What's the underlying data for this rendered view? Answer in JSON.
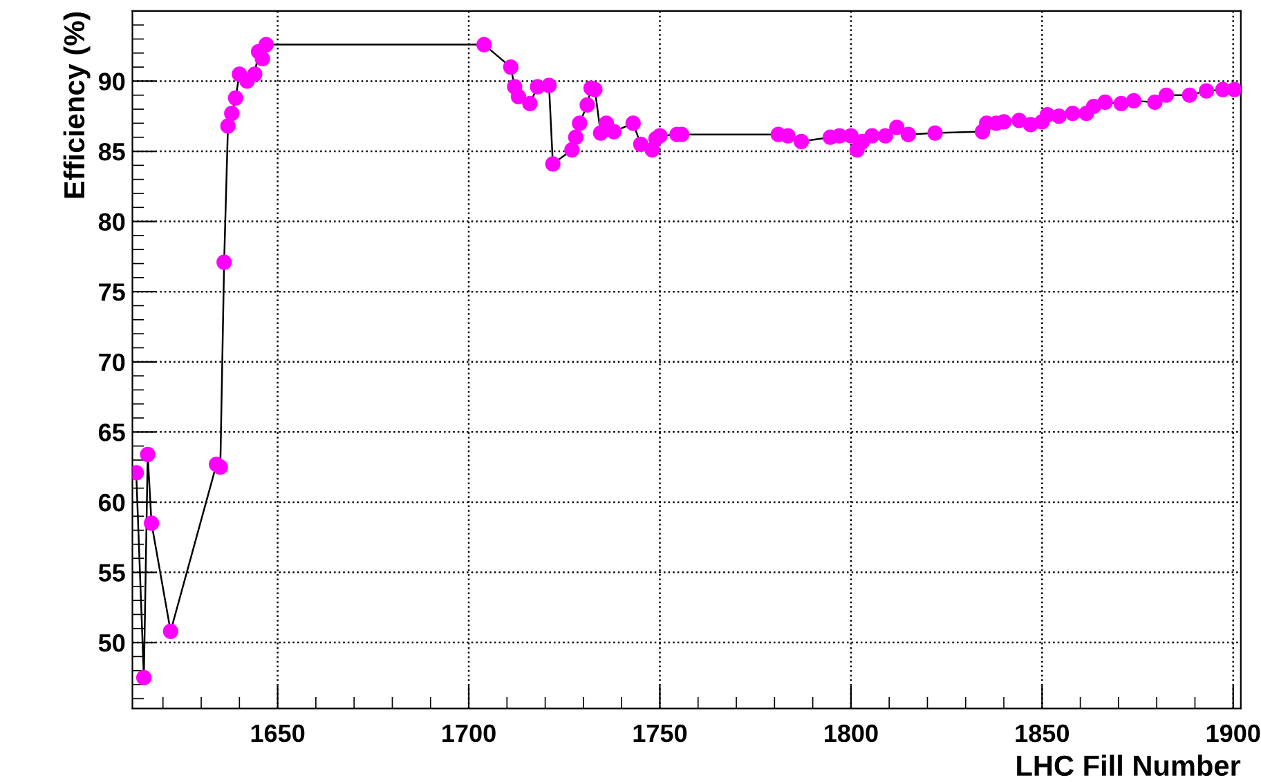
{
  "chart_data": {
    "type": "line",
    "xlabel": "LHC Fill Number",
    "ylabel": "Efficiency (%)",
    "xlim": [
      1612,
      1902
    ],
    "xticks": [
      1650,
      1700,
      1750,
      1800,
      1850,
      1900
    ],
    "ylim": [
      45.3,
      95.0
    ],
    "yticks": [
      50,
      55,
      60,
      65,
      70,
      75,
      80,
      85,
      90
    ],
    "grid": true,
    "marker": "circle",
    "line_style": "solid",
    "series": [
      {
        "color": "#ff00ff",
        "x": [
          1613,
          1615,
          1616,
          1617,
          1622,
          1634,
          1635,
          1636,
          1637,
          1638,
          1639,
          1640,
          1642,
          1644,
          1645,
          1646,
          1647,
          1704,
          1711,
          1712,
          1713,
          1716,
          1718,
          1721,
          1722,
          1727,
          1728,
          1729,
          1731,
          1732,
          1733,
          1734.5,
          1736,
          1738,
          1743,
          1745,
          1748,
          1749,
          1750,
          1754.5,
          1755.7,
          1781,
          1783.5,
          1787,
          1794.6,
          1797,
          1800,
          1801.6,
          1803,
          1805.5,
          1809,
          1812,
          1815,
          1822,
          1834.4,
          1835.5,
          1838,
          1840,
          1844,
          1847,
          1850,
          1851.4,
          1854.4,
          1858,
          1861.6,
          1863.5,
          1866.5,
          1870.7,
          1874,
          1879.5,
          1882.5,
          1888.6,
          1893,
          1897.3,
          1900.3
        ],
        "values": [
          62.1,
          47.5,
          63.4,
          58.5,
          50.8,
          62.7,
          62.5,
          77.1,
          86.8,
          87.7,
          88.8,
          90.5,
          90.0,
          90.5,
          92.1,
          91.6,
          92.6,
          92.6,
          91.0,
          89.6,
          88.9,
          88.4,
          89.6,
          89.7,
          84.1,
          85.1,
          86.0,
          87.0,
          88.3,
          89.5,
          89.4,
          86.3,
          87.0,
          86.4,
          87.0,
          85.5,
          85.1,
          85.9,
          86.1,
          86.2,
          86.2,
          86.2,
          86.1,
          85.7,
          86.0,
          86.1,
          86.1,
          85.1,
          85.7,
          86.1,
          86.1,
          86.7,
          86.2,
          86.3,
          86.4,
          87.0,
          87.0,
          87.1,
          87.2,
          86.9,
          87.1,
          87.6,
          87.5,
          87.7,
          87.7,
          88.2,
          88.5,
          88.4,
          88.6,
          88.5,
          89.0,
          89.0,
          89.3,
          89.4,
          89.4
        ]
      }
    ]
  }
}
